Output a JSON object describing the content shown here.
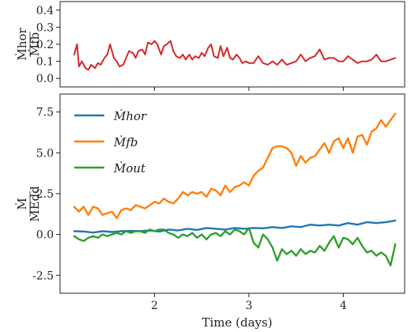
{
  "figure": {
    "xlabel": "Time (days)"
  },
  "chart_data": [
    {
      "type": "line",
      "ylabel_num": "Ṁhor",
      "ylabel_den": "Ṁfb",
      "xlim": [
        1.0,
        4.65
      ],
      "ylim": [
        -0.05,
        0.45
      ],
      "yticks": [
        0.0,
        0.1,
        0.2,
        0.3,
        0.4
      ],
      "ytick_labels": [
        "0.0",
        "0.1",
        "0.2",
        "0.3",
        "0.4"
      ],
      "grid": false,
      "series": [
        {
          "color": "#d62728",
          "x": [
            1.15,
            1.18,
            1.2,
            1.23,
            1.27,
            1.3,
            1.33,
            1.37,
            1.4,
            1.43,
            1.47,
            1.5,
            1.53,
            1.57,
            1.6,
            1.63,
            1.67,
            1.7,
            1.73,
            1.77,
            1.8,
            1.83,
            1.87,
            1.9,
            1.93,
            1.97,
            2.0,
            2.03,
            2.07,
            2.1,
            2.13,
            2.17,
            2.2,
            2.23,
            2.27,
            2.3,
            2.33,
            2.37,
            2.4,
            2.43,
            2.47,
            2.5,
            2.53,
            2.57,
            2.6,
            2.63,
            2.67,
            2.7,
            2.73,
            2.77,
            2.8,
            2.83,
            2.87,
            2.9,
            2.93,
            2.97,
            3.0,
            3.05,
            3.1,
            3.15,
            3.2,
            3.25,
            3.3,
            3.35,
            3.4,
            3.45,
            3.5,
            3.55,
            3.6,
            3.65,
            3.7,
            3.75,
            3.8,
            3.85,
            3.9,
            3.95,
            4.0,
            4.05,
            4.1,
            4.15,
            4.2,
            4.25,
            4.3,
            4.35,
            4.4,
            4.45,
            4.5,
            4.55
          ],
          "y": [
            0.14,
            0.2,
            0.07,
            0.1,
            0.06,
            0.05,
            0.08,
            0.06,
            0.09,
            0.08,
            0.12,
            0.14,
            0.2,
            0.12,
            0.1,
            0.07,
            0.08,
            0.12,
            0.16,
            0.15,
            0.12,
            0.16,
            0.17,
            0.14,
            0.21,
            0.2,
            0.22,
            0.2,
            0.14,
            0.19,
            0.2,
            0.22,
            0.16,
            0.13,
            0.12,
            0.14,
            0.11,
            0.14,
            0.11,
            0.13,
            0.12,
            0.15,
            0.13,
            0.18,
            0.2,
            0.13,
            0.12,
            0.19,
            0.13,
            0.18,
            0.12,
            0.11,
            0.14,
            0.12,
            0.09,
            0.1,
            0.09,
            0.09,
            0.13,
            0.09,
            0.08,
            0.1,
            0.08,
            0.11,
            0.08,
            0.09,
            0.1,
            0.14,
            0.1,
            0.12,
            0.13,
            0.17,
            0.11,
            0.12,
            0.12,
            0.1,
            0.1,
            0.13,
            0.11,
            0.09,
            0.1,
            0.1,
            0.11,
            0.14,
            0.1,
            0.1,
            0.11,
            0.12
          ]
        }
      ]
    },
    {
      "type": "line",
      "ylabel_num": "Ṁ",
      "ylabel_den": "MEdd",
      "xlim": [
        1.0,
        4.65
      ],
      "ylim": [
        -3.6,
        8.6
      ],
      "yticks": [
        -2.5,
        0.0,
        2.5,
        5.0,
        7.5
      ],
      "ytick_labels": [
        "-2.5",
        "0.0",
        "2.5",
        "5.0",
        "7.5"
      ],
      "xticks": [
        2,
        3,
        4
      ],
      "xtick_labels": [
        "2",
        "3",
        "4"
      ],
      "grid": false,
      "legend_position": "top-left",
      "series": [
        {
          "name": "Ṁhor",
          "color": "#1f77b4",
          "x": [
            1.15,
            1.25,
            1.35,
            1.45,
            1.55,
            1.65,
            1.75,
            1.85,
            1.95,
            2.05,
            2.15,
            2.25,
            2.35,
            2.45,
            2.55,
            2.65,
            2.75,
            2.85,
            2.95,
            3.05,
            3.15,
            3.25,
            3.35,
            3.45,
            3.55,
            3.65,
            3.75,
            3.85,
            3.95,
            4.05,
            4.15,
            4.25,
            4.35,
            4.45,
            4.55
          ],
          "y": [
            0.2,
            0.18,
            0.12,
            0.2,
            0.15,
            0.2,
            0.22,
            0.2,
            0.25,
            0.18,
            0.3,
            0.25,
            0.35,
            0.28,
            0.4,
            0.35,
            0.3,
            0.4,
            0.35,
            0.4,
            0.38,
            0.45,
            0.4,
            0.5,
            0.45,
            0.6,
            0.55,
            0.6,
            0.55,
            0.7,
            0.6,
            0.75,
            0.7,
            0.75,
            0.85
          ]
        },
        {
          "name": "Ṁfb",
          "color": "#ff7f0e",
          "x": [
            1.15,
            1.2,
            1.25,
            1.3,
            1.35,
            1.4,
            1.45,
            1.5,
            1.55,
            1.6,
            1.65,
            1.7,
            1.75,
            1.8,
            1.85,
            1.9,
            1.95,
            2.0,
            2.05,
            2.1,
            2.15,
            2.2,
            2.25,
            2.3,
            2.35,
            2.4,
            2.45,
            2.5,
            2.55,
            2.6,
            2.65,
            2.7,
            2.75,
            2.8,
            2.85,
            2.9,
            2.95,
            3.0,
            3.05,
            3.1,
            3.15,
            3.2,
            3.25,
            3.3,
            3.35,
            3.4,
            3.45,
            3.5,
            3.55,
            3.6,
            3.65,
            3.7,
            3.75,
            3.8,
            3.85,
            3.9,
            3.95,
            4.0,
            4.05,
            4.1,
            4.15,
            4.2,
            4.25,
            4.3,
            4.35,
            4.4,
            4.45,
            4.5,
            4.55
          ],
          "y": [
            1.7,
            1.4,
            1.7,
            1.2,
            1.7,
            1.6,
            1.2,
            1.3,
            1.4,
            1.0,
            1.5,
            1.6,
            1.5,
            1.8,
            1.7,
            1.6,
            1.8,
            2.0,
            1.9,
            2.2,
            2.0,
            1.9,
            2.2,
            2.6,
            2.4,
            2.6,
            2.5,
            2.6,
            2.3,
            2.8,
            2.7,
            2.4,
            3.0,
            2.6,
            2.9,
            3.0,
            3.2,
            3.0,
            3.6,
            3.9,
            4.1,
            4.7,
            5.3,
            5.4,
            5.4,
            5.3,
            5.0,
            4.2,
            4.8,
            4.4,
            4.7,
            4.8,
            5.2,
            5.6,
            5.0,
            5.7,
            5.9,
            5.3,
            5.9,
            5.0,
            6.0,
            6.1,
            5.5,
            6.3,
            6.5,
            7.0,
            6.6,
            7.0,
            7.4
          ]
        },
        {
          "name": "Ṁout",
          "color": "#2ca02c",
          "x": [
            1.15,
            1.2,
            1.25,
            1.3,
            1.35,
            1.4,
            1.45,
            1.5,
            1.55,
            1.6,
            1.65,
            1.7,
            1.75,
            1.8,
            1.85,
            1.9,
            1.95,
            2.0,
            2.05,
            2.1,
            2.15,
            2.2,
            2.25,
            2.3,
            2.35,
            2.4,
            2.45,
            2.5,
            2.55,
            2.6,
            2.65,
            2.7,
            2.75,
            2.8,
            2.85,
            2.9,
            2.95,
            3.0,
            3.05,
            3.1,
            3.15,
            3.2,
            3.25,
            3.3,
            3.35,
            3.4,
            3.45,
            3.5,
            3.55,
            3.6,
            3.65,
            3.7,
            3.75,
            3.8,
            3.85,
            3.9,
            3.95,
            4.0,
            4.05,
            4.1,
            4.15,
            4.2,
            4.25,
            4.3,
            4.35,
            4.4,
            4.45,
            4.5,
            4.55
          ],
          "y": [
            -0.1,
            -0.3,
            -0.4,
            -0.2,
            -0.1,
            -0.2,
            0.0,
            -0.1,
            0.0,
            0.1,
            0.0,
            0.2,
            0.1,
            0.2,
            0.2,
            0.1,
            0.3,
            0.2,
            0.3,
            0.3,
            0.1,
            0.0,
            -0.2,
            0.0,
            -0.1,
            0.1,
            -0.2,
            0.0,
            -0.3,
            0.0,
            0.1,
            -0.1,
            0.2,
            0.0,
            0.3,
            0.2,
            0.0,
            0.4,
            -0.5,
            -0.8,
            0.0,
            -0.3,
            -0.8,
            -1.6,
            -0.9,
            -1.2,
            -1.0,
            -1.3,
            -0.9,
            -1.2,
            -1.0,
            -1.1,
            -0.7,
            -1.0,
            -0.5,
            -0.1,
            -0.8,
            -0.2,
            -0.3,
            -0.6,
            -0.2,
            -0.7,
            -1.1,
            -1.0,
            -1.3,
            -1.1,
            -1.3,
            -1.9,
            -0.6
          ]
        }
      ]
    }
  ]
}
